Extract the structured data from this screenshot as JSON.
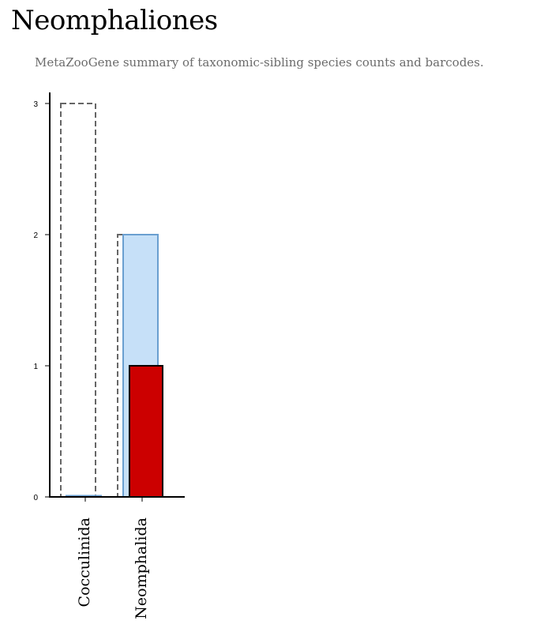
{
  "page": {
    "title": "Neomphaliones",
    "subtitle": "MetaZooGene summary of taxonomic-sibling species counts and barcodes."
  },
  "colors": {
    "total_outline": "#666666",
    "species_fill": "#c6e0f8",
    "species_stroke": "#6a9fd0",
    "barcodes_fill": "#cc0000",
    "barcodes_stroke": "#000000",
    "axis": "#000000"
  },
  "chart_data": {
    "type": "bar",
    "categories": [
      "Cocculinida",
      "Neomphalida"
    ],
    "series": [
      {
        "values": [
          3,
          2
        ],
        "style": "dashed-outline"
      },
      {
        "values": [
          0,
          2
        ],
        "style": "light-blue-fill"
      },
      {
        "values": [
          0,
          1
        ],
        "style": "red-fill"
      }
    ],
    "yticks": [
      "0",
      "1",
      "2",
      "3"
    ],
    "ylim": [
      0,
      3
    ],
    "xlabel": "",
    "ylabel": "",
    "title": "",
    "grid": false,
    "legend": "none"
  }
}
